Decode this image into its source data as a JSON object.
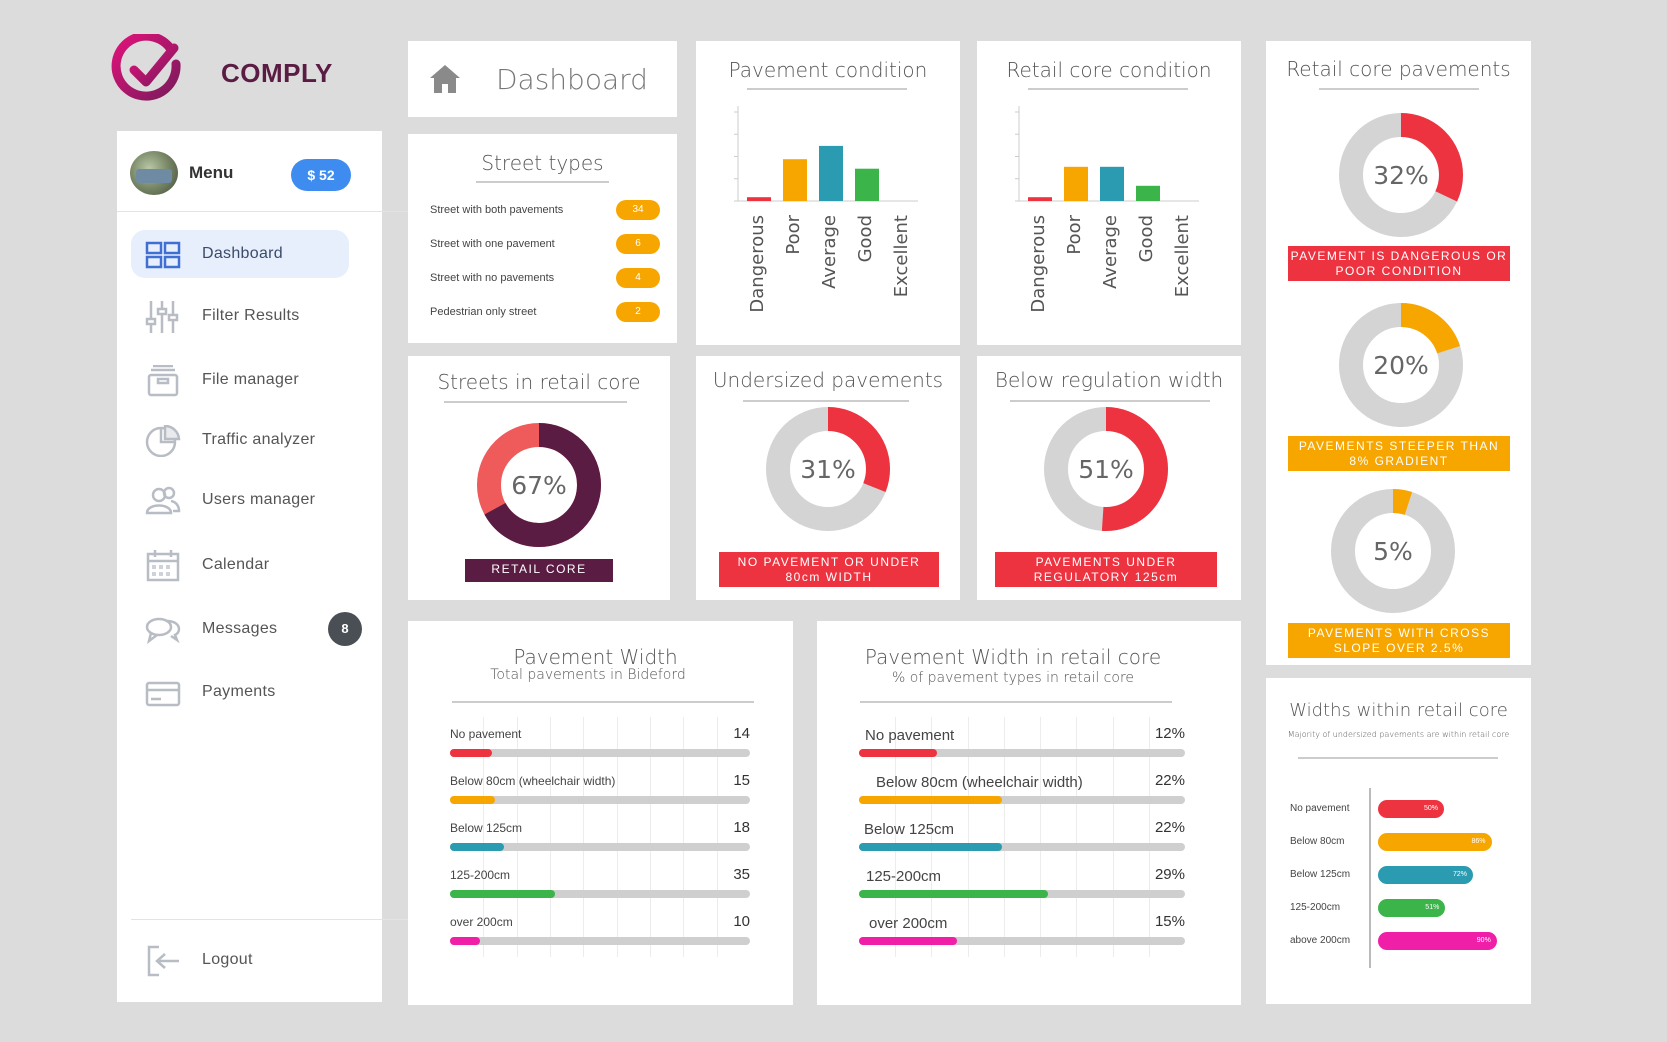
{
  "brand": {
    "name": "COMPLY",
    "color": "#5b1c44",
    "accent": "#c0127a"
  },
  "sidebar": {
    "menu_label": "Menu",
    "balance": "$ 52",
    "items": [
      {
        "label": "Dashboard",
        "icon": "dashboard-icon",
        "active": true
      },
      {
        "label": "Filter Results",
        "icon": "sliders-icon"
      },
      {
        "label": "File manager",
        "icon": "file-box-icon"
      },
      {
        "label": "Traffic analyzer",
        "icon": "pie-chart-icon"
      },
      {
        "label": "Users manager",
        "icon": "users-icon"
      },
      {
        "label": "Calendar",
        "icon": "calendar-icon"
      },
      {
        "label": "Messages",
        "icon": "chat-icon",
        "badge": "8"
      },
      {
        "label": "Payments",
        "icon": "card-icon"
      }
    ],
    "logout": "Logout"
  },
  "header": {
    "title": "Dashboard"
  },
  "street_types": {
    "title": "Street types",
    "rows": [
      {
        "label": "Street with both pavements",
        "count": "34"
      },
      {
        "label": "Street with one pavement",
        "count": "6"
      },
      {
        "label": "Street with no pavements",
        "count": "4"
      },
      {
        "label": "Pedestrian only street",
        "count": "2"
      }
    ]
  },
  "pavement_condition": {
    "title": "Pavement condition",
    "chart_data": {
      "type": "bar",
      "categories": [
        "Dangerous",
        "Poor",
        "Average",
        "Good",
        "Excellent"
      ],
      "values": [
        2,
        22,
        29,
        17,
        0
      ],
      "colors": [
        "#ee3340",
        "#f7a600",
        "#2a9bb0",
        "#3bb44a",
        "#888888"
      ],
      "ylim": [
        0,
        50
      ],
      "yticks": [
        "",
        "",
        "",
        "",
        ""
      ]
    }
  },
  "retail_core_condition": {
    "title": "Retail core condition",
    "chart_data": {
      "type": "bar",
      "categories": [
        "Dangerous",
        "Poor",
        "Average",
        "Good",
        "Excellent"
      ],
      "values": [
        2,
        18,
        18,
        8,
        0
      ],
      "colors": [
        "#ee3340",
        "#f7a600",
        "#2a9bb0",
        "#3bb44a",
        "#888888"
      ],
      "ylim": [
        0,
        50
      ],
      "yticks": [
        "",
        "",
        "",
        "",
        ""
      ]
    }
  },
  "retail_core_pavements": {
    "title": "Retail core pavements",
    "donuts": [
      {
        "percent": 32,
        "value_label": "32%",
        "color": "#ee3340",
        "caption": "PAVEMENT IS DANGEROUS OR POOR CONDITION",
        "caption_color": "#ee3340"
      },
      {
        "percent": 20,
        "value_label": "20%",
        "color": "#f7a600",
        "caption": "PAVEMENTS STEEPER THAN 8% GRADIENT",
        "caption_color": "#f7a600"
      },
      {
        "percent": 5,
        "value_label": "5%",
        "color": "#f7a600",
        "caption": "PAVEMENTS WITH CROSS SLOPE OVER 2.5%",
        "caption_color": "#f7a600"
      }
    ]
  },
  "streets_in_retail_core": {
    "title": "Streets in retail core",
    "percent": 67,
    "value_label": "67%",
    "color": "#5b1c44",
    "rest_color": "#ef5b5b",
    "caption": "RETAIL CORE"
  },
  "undersized_pavements": {
    "title": "Undersized pavements",
    "percent": 31,
    "value_label": "31%",
    "color": "#ee3340",
    "caption": "NO PAVEMENT OR UNDER 80cm WIDTH"
  },
  "below_regulation": {
    "title": "Below regulation width",
    "percent": 51,
    "value_label": "51%",
    "color": "#ee3340",
    "caption": "PAVEMENTS UNDER REGULATORY 125cm"
  },
  "pavement_width": {
    "title": "Pavement Width",
    "subtitle": "Total pavements in Bideford",
    "chart_data": {
      "type": "bar",
      "categories": [
        "No pavement",
        "Below 80cm (wheelchair width)",
        "Below 125cm",
        "125-200cm",
        "over 200cm"
      ],
      "values": [
        14,
        15,
        18,
        35,
        10
      ],
      "value_labels": [
        "14",
        "15",
        "18",
        "35",
        "10"
      ],
      "colors": [
        "#ee3340",
        "#f7a600",
        "#2a9bb0",
        "#3bb44a",
        "#f01fa8"
      ],
      "xlim": [
        0,
        100
      ]
    }
  },
  "pavement_width_retail": {
    "title": "Pavement Width in retail core",
    "subtitle": "% of pavement types in retail core",
    "chart_data": {
      "type": "bar",
      "categories": [
        "No pavement",
        "Below 80cm (wheelchair width)",
        "Below 125cm",
        "125-200cm",
        "over 200cm"
      ],
      "values": [
        12,
        22,
        22,
        29,
        15
      ],
      "value_labels": [
        "12%",
        "22%",
        "22%",
        "29%",
        "15%"
      ],
      "colors": [
        "#ee3340",
        "#f7a600",
        "#2a9bb0",
        "#3bb44a",
        "#f01fa8"
      ],
      "xlim": [
        0,
        50
      ]
    }
  },
  "widths_retail": {
    "title": "Widths within retail core",
    "subtitle": "Majority of undersized pavements are within retail core",
    "chart_data": {
      "type": "bar",
      "categories": [
        "No pavement",
        "Below 80cm",
        "Below 125cm",
        "125-200cm",
        "above 200cm"
      ],
      "values": [
        50,
        86,
        72,
        51,
        90
      ],
      "value_labels": [
        "50%",
        "86%",
        "72%",
        "51%",
        "90%"
      ],
      "colors": [
        "#ee3340",
        "#f7a600",
        "#2a9bb0",
        "#3bb44a",
        "#f01fa8"
      ],
      "xlim": [
        0,
        100
      ]
    }
  }
}
